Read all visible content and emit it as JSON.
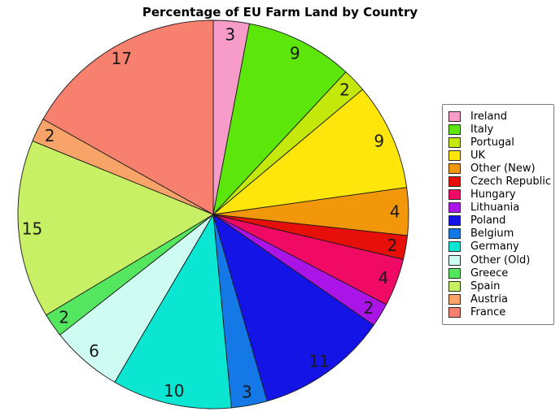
{
  "window": {
    "background_color": "#ffffff"
  },
  "chart_data": {
    "type": "pie",
    "title": "Percentage of EU Farm Land by Country",
    "start_angle": "top",
    "direction": "clockwise",
    "values_total": 101,
    "slice_label_distance": 0.93,
    "legend_position": "right",
    "slices": [
      {
        "label": "Ireland",
        "value": 3,
        "color": "#F79BC8"
      },
      {
        "label": "Italy",
        "value": 9,
        "color": "#5CE60A"
      },
      {
        "label": "Portugal",
        "value": 2,
        "color": "#C3E80A"
      },
      {
        "label": "UK",
        "value": 9,
        "color": "#FFE60A"
      },
      {
        "label": "Other (New)",
        "value": 4,
        "color": "#F2970A"
      },
      {
        "label": "Czech Republic",
        "value": 2,
        "color": "#E60F0A"
      },
      {
        "label": "Hungary",
        "value": 4,
        "color": "#F00A64"
      },
      {
        "label": "Lithuania",
        "value": 2,
        "color": "#AA14E6"
      },
      {
        "label": "Poland",
        "value": 11,
        "color": "#1414E6"
      },
      {
        "label": "Belgium",
        "value": 3,
        "color": "#1478E6"
      },
      {
        "label": "Germany",
        "value": 10,
        "color": "#0AE6D2"
      },
      {
        "label": "Other (Old)",
        "value": 6,
        "color": "#CFFCF2"
      },
      {
        "label": "Greece",
        "value": 2,
        "color": "#55E65F"
      },
      {
        "label": "Spain",
        "value": 15,
        "color": "#C8F064"
      },
      {
        "label": "Austria",
        "value": 2,
        "color": "#F8A468"
      },
      {
        "label": "France",
        "value": 17,
        "color": "#F8806E"
      }
    ]
  },
  "style": {
    "slice_edge_color": "#1a1a1a",
    "slice_value_label_color": "#1a1a1a",
    "legend_border_color": "#7a7a7a",
    "legend_text_color": "#000000"
  }
}
